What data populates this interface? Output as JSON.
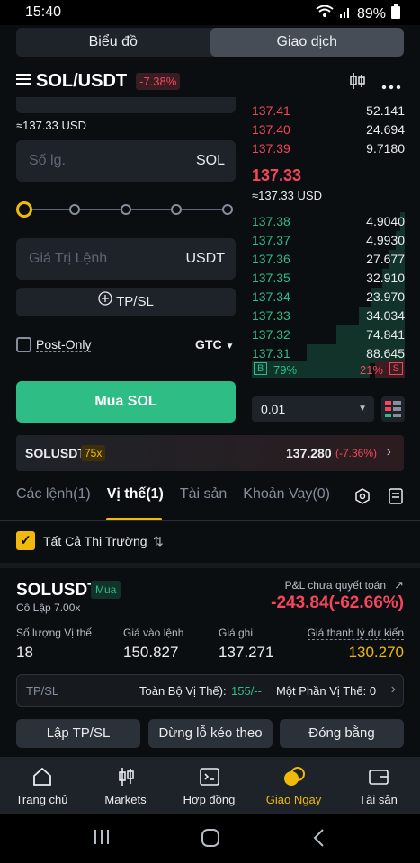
{
  "status_bar": {
    "time": "15:40",
    "battery": "89%"
  },
  "top_tabs": [
    {
      "label": "Biểu đồ"
    },
    {
      "label": "Giao dịch"
    }
  ],
  "header": {
    "pair": "SOL/USDT",
    "change": "-7.38%"
  },
  "form": {
    "approx_price": "≈137.33 USD",
    "qty_placeholder": "Số lg.",
    "qty_unit": "SOL",
    "value_placeholder": "Giá Trị Lệnh",
    "value_unit": "USDT",
    "tpsl_label": "TP/SL",
    "post_only_label": "Post-Only",
    "tif_label": "GTC",
    "buy_label": "Mua SOL",
    "slider_fraction": 0
  },
  "orderbook": {
    "asks": [
      {
        "price": "137.41",
        "qty": "52.141"
      },
      {
        "price": "137.40",
        "qty": "24.694"
      },
      {
        "price": "137.39",
        "qty": "9.7180"
      }
    ],
    "last_price": "137.33",
    "last_price_usd": "≈137.33 USD",
    "bids": [
      {
        "price": "137.38",
        "qty": "4.9040",
        "depth": 0.03
      },
      {
        "price": "137.37",
        "qty": "4.9930",
        "depth": 0.06
      },
      {
        "price": "137.36",
        "qty": "27.677",
        "depth": 0.1
      },
      {
        "price": "137.35",
        "qty": "32.910",
        "depth": 0.15
      },
      {
        "price": "137.34",
        "qty": "23.970",
        "depth": 0.22
      },
      {
        "price": "137.33",
        "qty": "34.034",
        "depth": 0.3
      },
      {
        "price": "137.32",
        "qty": "74.841",
        "depth": 0.45
      },
      {
        "price": "137.31",
        "qty": "88.645",
        "depth": 0.64
      }
    ],
    "buy_badge": "B",
    "buy_ratio": "79%",
    "sell_ratio": "21%",
    "sell_badge": "S",
    "tick_size": "0.01"
  },
  "ticker": {
    "symbol": "SOLUSDT",
    "leverage": "75x",
    "price": "137.280",
    "change": "(-7.36%)"
  },
  "tabs": [
    {
      "label": "Các lệnh(1)"
    },
    {
      "label": "Vị thế(1)"
    },
    {
      "label": "Tài sản"
    },
    {
      "label": "Khoản Vay(0)"
    }
  ],
  "filter_label": "Tất Cả Thị Trường",
  "position": {
    "symbol": "SOLUSDT",
    "side": "Mua",
    "margin": "Cô Lập 7.00x",
    "pnl_label": "P&L chưa quyết toán",
    "pnl_value": "-243.84(-62.66%)",
    "size_label": "Số lượng Vị thế",
    "size_value": "18",
    "entry_label": "Giá vào lệnh",
    "entry_value": "150.827",
    "mark_label": "Giá ghi",
    "mark_value": "137.271",
    "liq_label": "Giá thanh lý dự kiến",
    "liq_value": "130.270",
    "tpsl_label": "TP/SL",
    "full_label": "Toàn Bộ Vị Thế):",
    "full_value": "155/--",
    "partial_label": "Một Phần Vị Thế: 0",
    "btn_tpsl": "Lập TP/SL",
    "btn_trailing": "Dừng lỗ kéo theo",
    "btn_close": "Đóng bằng"
  },
  "bottom_nav": [
    {
      "label": "Trang chủ"
    },
    {
      "label": "Markets"
    },
    {
      "label": "Hợp đồng"
    },
    {
      "label": "Giao Ngay"
    },
    {
      "label": "Tài sản"
    }
  ],
  "colors": {
    "accent": "#f0b90b",
    "buy": "#2ebd85",
    "sell": "#f6465d",
    "bg": "#0b0e11"
  }
}
